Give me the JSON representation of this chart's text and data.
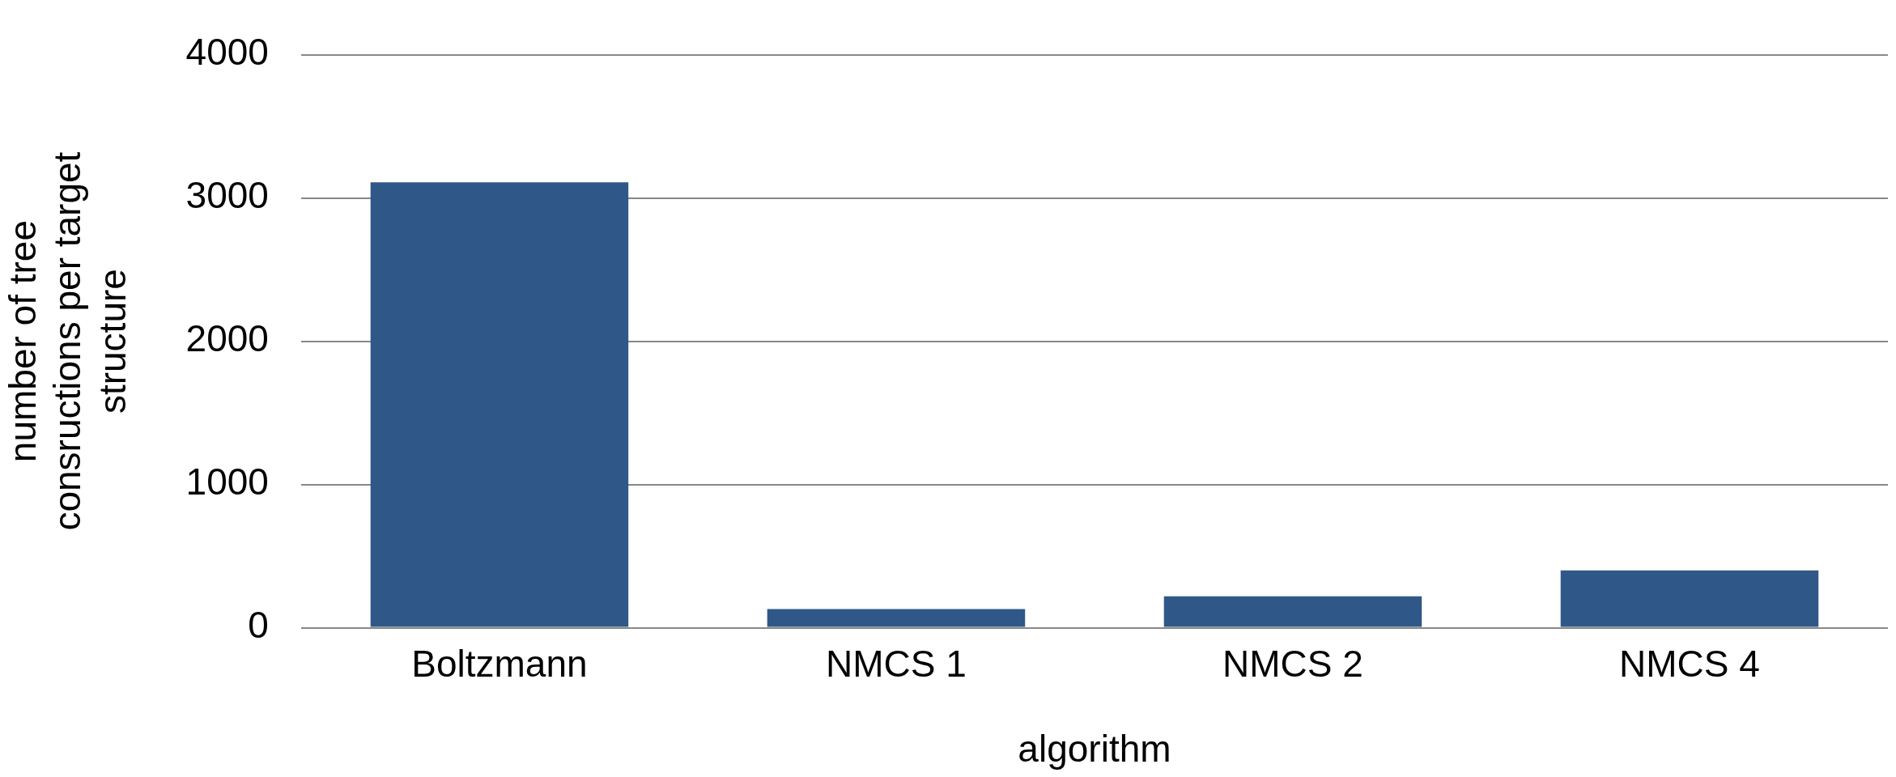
{
  "chart_data": {
    "type": "bar",
    "xlabel": "algorithm",
    "ylabel": "number of tree consructions per target structure",
    "categories": [
      "Boltzmann",
      "NMCS 1",
      "NMCS 2",
      "NMCS 4"
    ],
    "values": [
      3110,
      130,
      220,
      400
    ],
    "color": "#2f5889",
    "ylim": [
      0,
      4000
    ],
    "yticks": [
      0,
      1000,
      2000,
      3000,
      4000
    ],
    "grid": "y"
  }
}
